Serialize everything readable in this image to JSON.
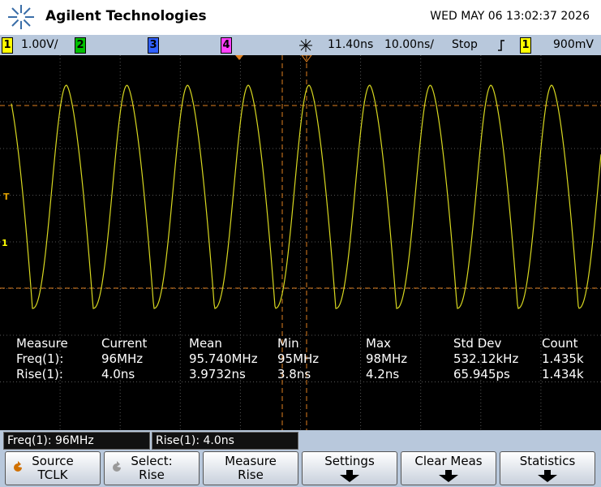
{
  "header": {
    "brand": "Agilent Technologies",
    "datetime": "WED MAY 06 13:02:37 2026"
  },
  "topbar": {
    "ch1": "1",
    "ch1_scale": "1.00V/",
    "ch2": "2",
    "ch3": "3",
    "ch4": "4",
    "delay": "11.40ns",
    "timebase": "10.00ns/",
    "run_state": "Stop",
    "trigger_channel": "1",
    "trigger_level": "900mV"
  },
  "markers": {
    "trigger": "T",
    "channel": "1"
  },
  "measurements": {
    "headers": [
      "Measure",
      "Current",
      "Mean",
      "Min",
      "Max",
      "Std Dev",
      "Count"
    ],
    "rows": [
      [
        "Freq(1):",
        "96MHz",
        "95.740MHz",
        "95MHz",
        "98MHz",
        "532.12kHz",
        "1.435k"
      ],
      [
        "Rise(1):",
        "4.0ns",
        "3.9732ns",
        "3.8ns",
        "4.2ns",
        "65.945ps",
        "1.434k"
      ]
    ]
  },
  "status": [
    "Freq(1): 96MHz",
    "Rise(1): 4.0ns"
  ],
  "softkeys": [
    {
      "label": "Source",
      "value": "TCLK"
    },
    {
      "label": "Select:",
      "value": "Rise"
    },
    {
      "label": "Measure",
      "value": "Rise"
    },
    {
      "label": "Settings"
    },
    {
      "label": "Clear Meas"
    },
    {
      "label": "Statistics"
    }
  ]
}
